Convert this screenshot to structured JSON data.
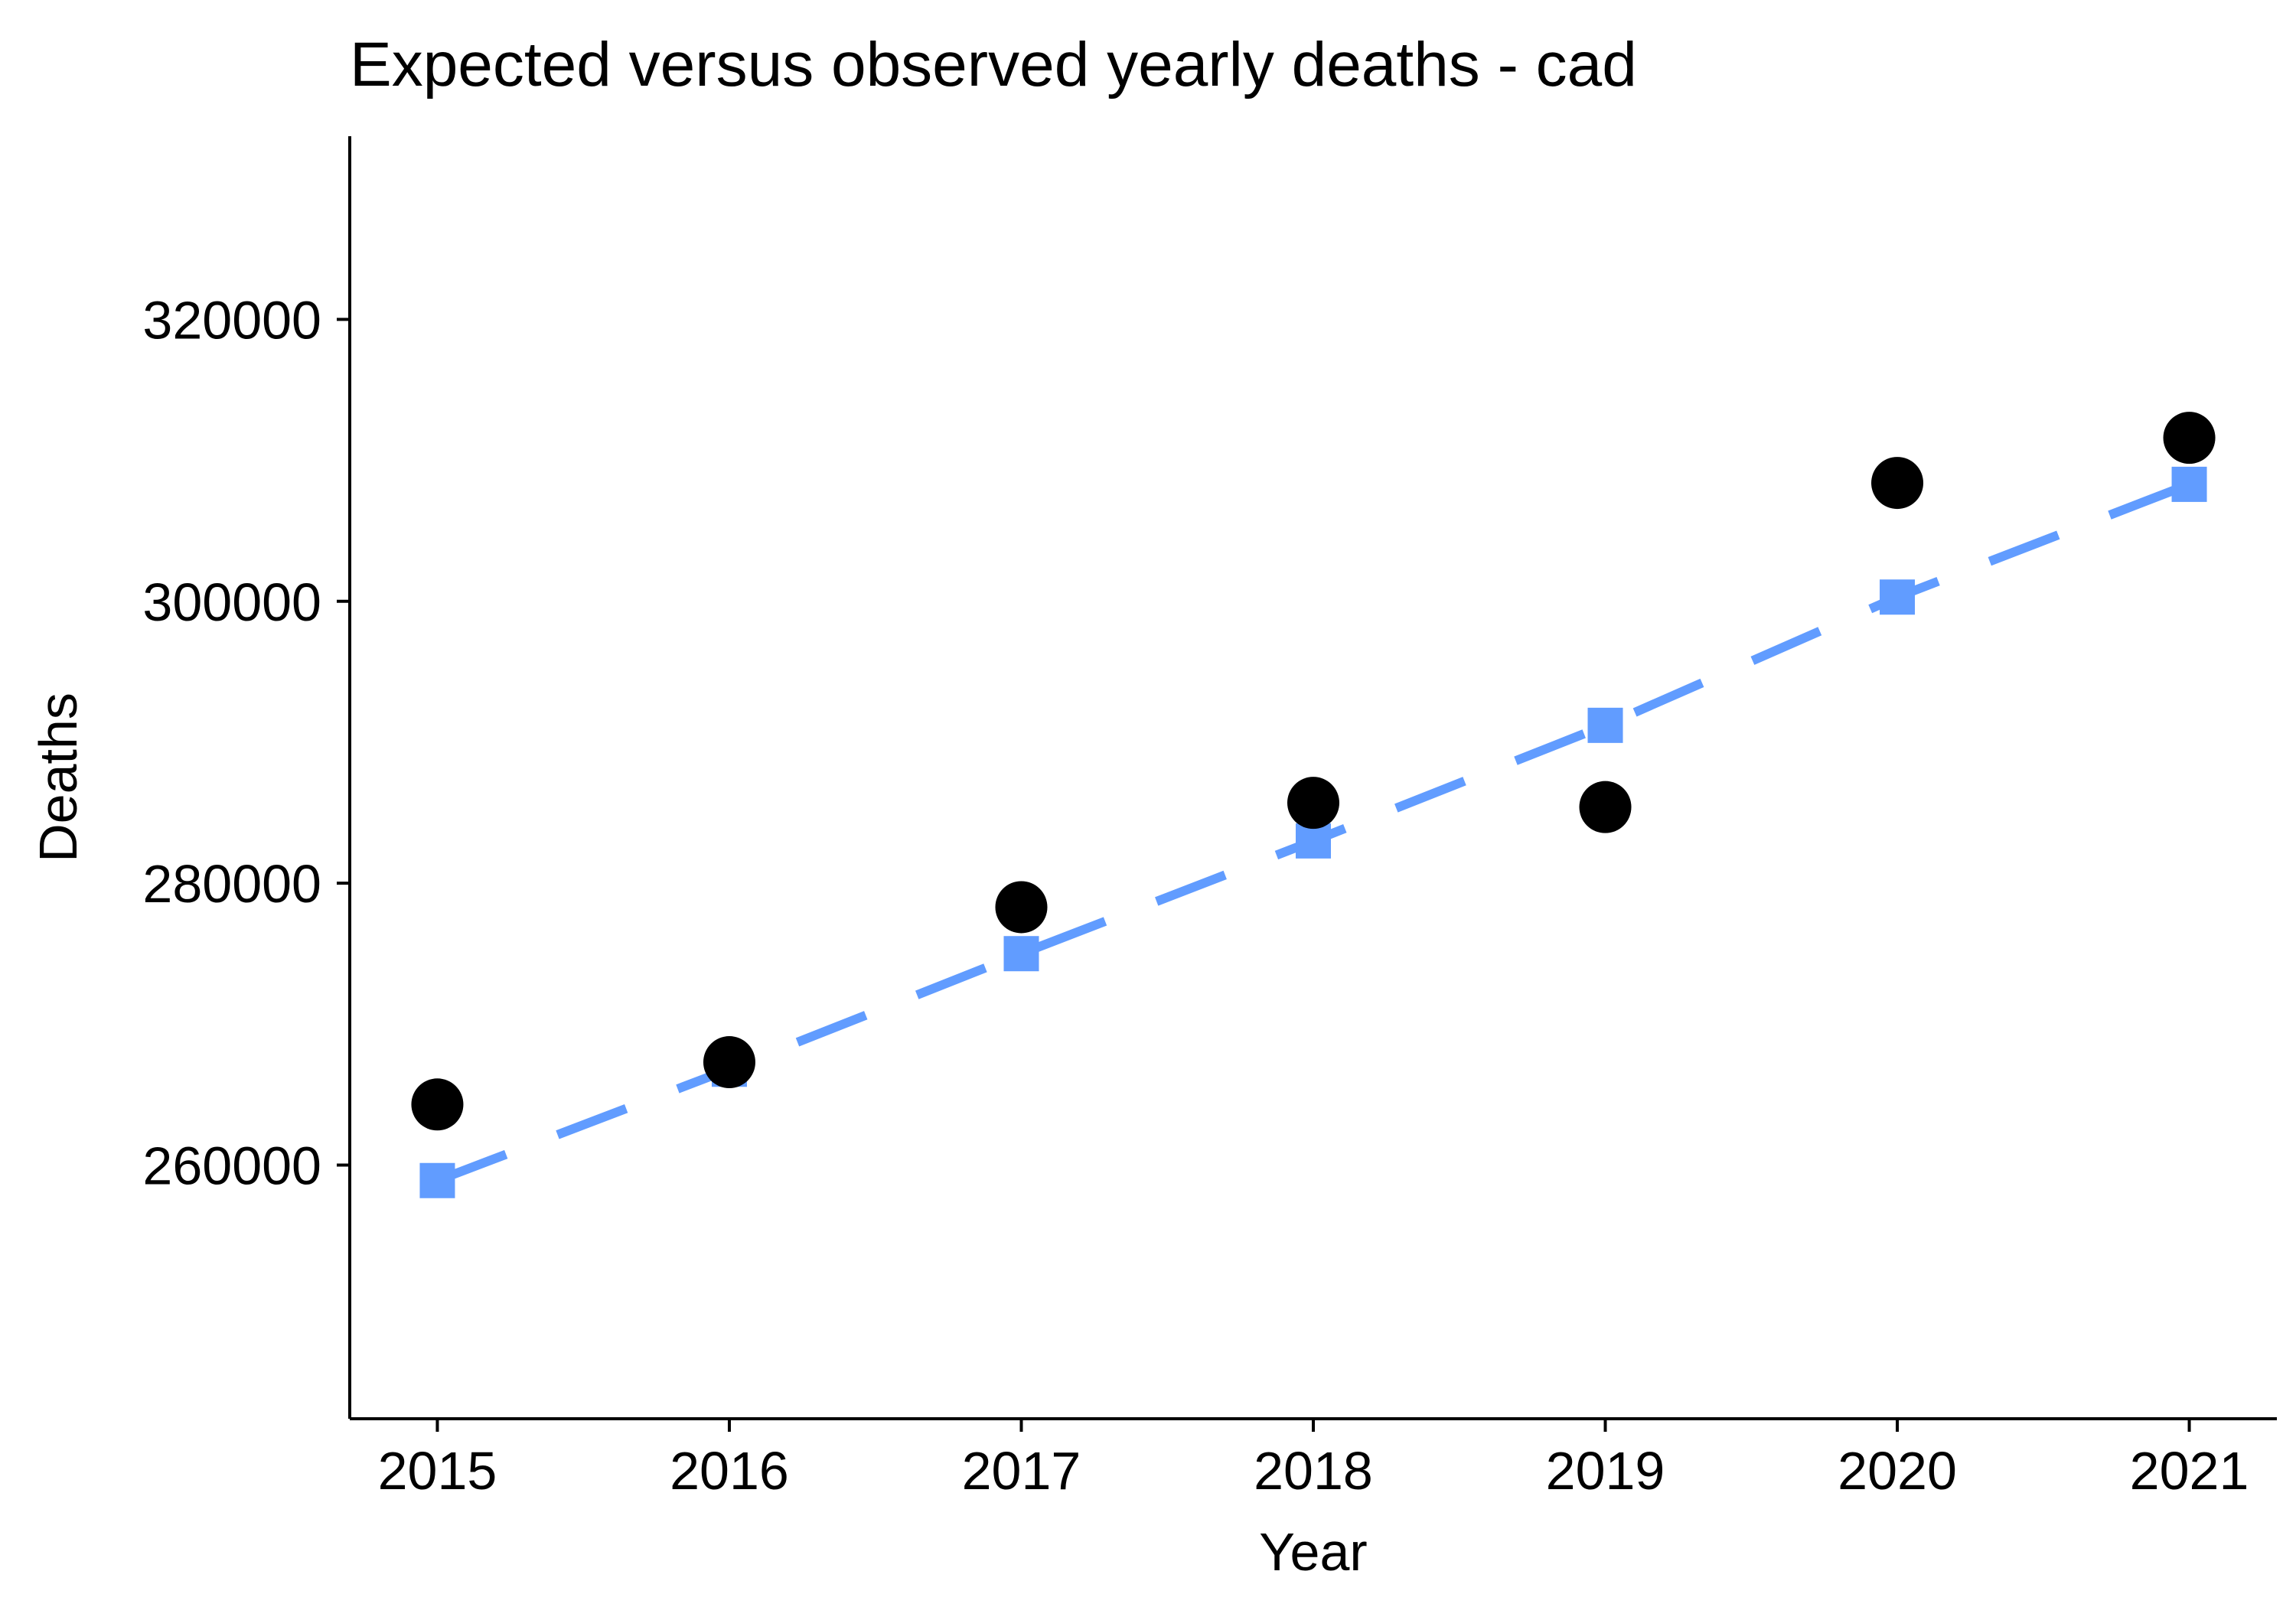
{
  "chart_data": {
    "type": "line",
    "title": "Expected versus observed yearly deaths - cad",
    "xlabel": "Year",
    "ylabel": "Deaths",
    "x": [
      2015,
      2016,
      2017,
      2018,
      2019,
      2020,
      2021
    ],
    "x_ticks": [
      "2015",
      "2016",
      "2017",
      "2018",
      "2019",
      "2020",
      "2021"
    ],
    "y_ticks": [
      "260000",
      "280000",
      "300000",
      "320000"
    ],
    "y_tick_values": [
      260000,
      280000,
      300000,
      320000
    ],
    "ylim": [
      242000,
      333000
    ],
    "xlim": [
      2014.7,
      2021.3
    ],
    "grid": false,
    "legend": "none",
    "series": [
      {
        "role": "expected",
        "style": "dashed-line-with-square-markers",
        "color": "#619CFF",
        "values": [
          258900,
          266800,
          275000,
          283000,
          291200,
          300300,
          308300
        ]
      },
      {
        "role": "observed",
        "style": "circle-markers",
        "color": "#000000",
        "values": [
          264300,
          267300,
          278300,
          285700,
          285400,
          308400,
          311600
        ]
      }
    ]
  }
}
